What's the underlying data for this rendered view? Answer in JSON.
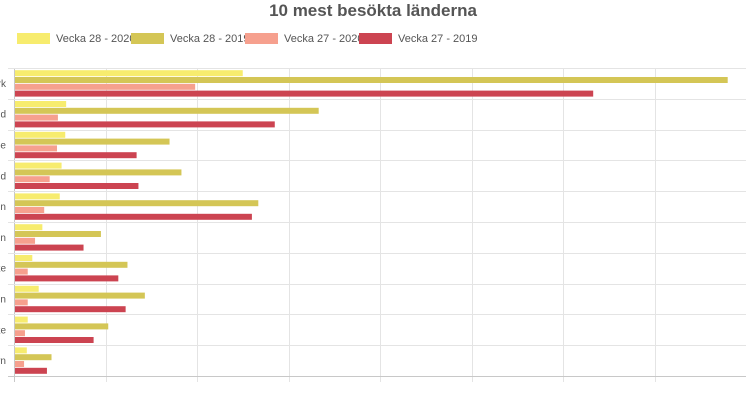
{
  "chart_data": {
    "type": "bar",
    "orientation": "horizontal",
    "title": "10 mest besökta länderna",
    "categories": [
      "rk",
      "d",
      "ge",
      "d",
      "en",
      "en",
      "ke",
      "en",
      "ke",
      "rn"
    ],
    "series": [
      {
        "name": "Vecka 28 - 2020",
        "color": "#f7ec6e",
        "values": [
          250,
          57,
          56,
          52,
          50,
          31,
          20,
          27,
          15,
          14
        ]
      },
      {
        "name": "Vecka 28 - 2019",
        "color": "#d4c656",
        "values": [
          780,
          333,
          170,
          183,
          267,
          95,
          124,
          143,
          103,
          41
        ]
      },
      {
        "name": "Vecka 27 - 2020",
        "color": "#f6a08e",
        "values": [
          198,
          48,
          47,
          39,
          33,
          23,
          15,
          15,
          12,
          11
        ]
      },
      {
        "name": "Vecka 27 - 2019",
        "color": "#cc4451",
        "values": [
          633,
          285,
          134,
          136,
          260,
          76,
          114,
          122,
          87,
          36
        ]
      }
    ],
    "xlim": [
      0,
      800
    ],
    "grid": true,
    "legend_position": "top-left"
  }
}
